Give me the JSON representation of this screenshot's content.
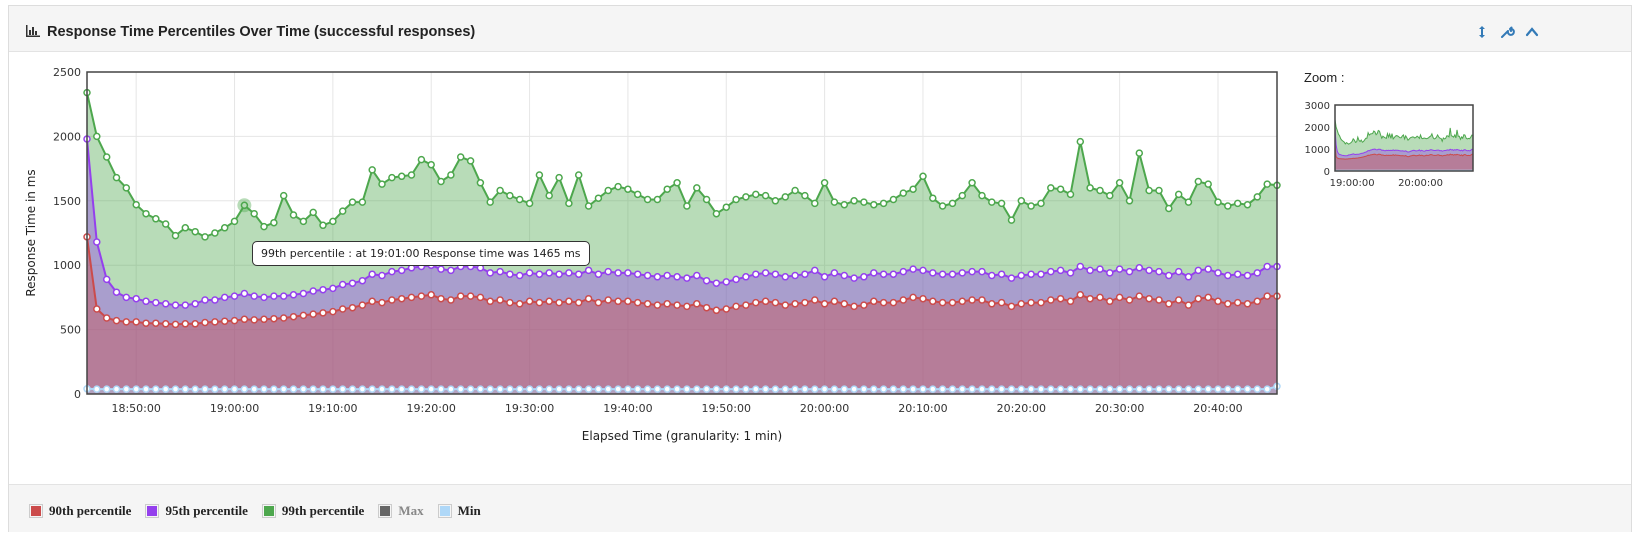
{
  "panel": {
    "title": "Response Time Percentiles Over Time (successful responses)",
    "buttons": [
      {
        "name": "resize-icon"
      },
      {
        "name": "wrench-icon"
      },
      {
        "name": "chevron-up-icon"
      }
    ]
  },
  "zoom": {
    "title": "Zoom :"
  },
  "tooltip": {
    "text": "99th percentile : at 19:01:00 Response time was 1465 ms"
  },
  "colors": {
    "p90": "#cb4b4b",
    "p95": "#9440ed",
    "p99": "#4da74d",
    "max": "#666666",
    "min": "#afd8f8"
  },
  "legend": [
    {
      "label": "90th percentile",
      "color": "#cb4b4b",
      "muted": false
    },
    {
      "label": "95th percentile",
      "color": "#9440ed",
      "muted": false
    },
    {
      "label": "99th percentile",
      "color": "#4da74d",
      "muted": false
    },
    {
      "label": "Max",
      "color": "#666666",
      "muted": true
    },
    {
      "label": "Min",
      "color": "#afd8f8",
      "muted": false
    }
  ],
  "chart_data": {
    "type": "area",
    "title": "",
    "xlabel": "Elapsed Time (granularity: 1 min)",
    "ylabel": "Response Time in ms",
    "x_start": "18:45:00",
    "x_step_min": 1,
    "xlim_min": [
      0,
      121
    ],
    "x_ticks": [
      "18:50:00",
      "19:00:00",
      "19:10:00",
      "19:20:00",
      "19:30:00",
      "19:40:00",
      "19:50:00",
      "20:00:00",
      "20:10:00",
      "20:20:00",
      "20:30:00",
      "20:40:00"
    ],
    "ylim": [
      0,
      2500
    ],
    "y_ticks": [
      0,
      500,
      1000,
      1500,
      2000,
      2500
    ],
    "grid": true,
    "legend_position": "bottom",
    "series": [
      {
        "name": "99th percentile",
        "values": [
          2340,
          2000,
          1840,
          1680,
          1600,
          1470,
          1400,
          1360,
          1320,
          1230,
          1290,
          1260,
          1220,
          1250,
          1290,
          1340,
          1465,
          1400,
          1300,
          1330,
          1540,
          1390,
          1340,
          1410,
          1310,
          1340,
          1420,
          1490,
          1490,
          1740,
          1630,
          1680,
          1690,
          1700,
          1820,
          1780,
          1650,
          1700,
          1840,
          1810,
          1640,
          1490,
          1580,
          1540,
          1510,
          1480,
          1700,
          1540,
          1680,
          1480,
          1700,
          1460,
          1520,
          1580,
          1610,
          1590,
          1550,
          1510,
          1510,
          1590,
          1640,
          1460,
          1600,
          1510,
          1400,
          1450,
          1510,
          1530,
          1550,
          1540,
          1500,
          1530,
          1580,
          1540,
          1480,
          1640,
          1490,
          1470,
          1500,
          1490,
          1470,
          1480,
          1510,
          1560,
          1590,
          1690,
          1520,
          1460,
          1480,
          1540,
          1640,
          1540,
          1490,
          1480,
          1350,
          1500,
          1460,
          1480,
          1600,
          1590,
          1550,
          1960,
          1600,
          1580,
          1540,
          1640,
          1500,
          1870,
          1580,
          1580,
          1440,
          1550,
          1490,
          1650,
          1630,
          1490,
          1460,
          1480,
          1470,
          1530,
          1630,
          1620
        ],
        "style_color": "#4da74d"
      },
      {
        "name": "95th percentile",
        "values": [
          1980,
          1180,
          890,
          790,
          750,
          740,
          720,
          710,
          700,
          690,
          690,
          700,
          730,
          730,
          750,
          760,
          780,
          760,
          750,
          760,
          760,
          770,
          780,
          800,
          810,
          820,
          850,
          860,
          880,
          930,
          920,
          950,
          960,
          980,
          990,
          1000,
          970,
          960,
          990,
          990,
          980,
          940,
          950,
          930,
          920,
          940,
          930,
          940,
          930,
          940,
          930,
          960,
          930,
          950,
          940,
          940,
          930,
          920,
          910,
          920,
          910,
          900,
          920,
          880,
          860,
          870,
          890,
          910,
          930,
          940,
          930,
          910,
          920,
          930,
          960,
          910,
          940,
          920,
          900,
          910,
          940,
          930,
          930,
          950,
          970,
          960,
          940,
          930,
          930,
          940,
          950,
          950,
          920,
          930,
          900,
          920,
          930,
          930,
          950,
          960,
          940,
          990,
          960,
          970,
          940,
          970,
          950,
          980,
          960,
          950,
          920,
          950,
          910,
          960,
          970,
          940,
          920,
          930,
          920,
          940,
          990,
          990
        ],
        "style_color": "#9440ed"
      },
      {
        "name": "90th percentile",
        "values": [
          1220,
          660,
          590,
          570,
          560,
          560,
          550,
          550,
          545,
          540,
          545,
          545,
          555,
          560,
          565,
          570,
          580,
          575,
          580,
          585,
          590,
          600,
          610,
          620,
          630,
          640,
          660,
          670,
          690,
          720,
          710,
          730,
          740,
          750,
          760,
          770,
          740,
          730,
          760,
          760,
          750,
          720,
          730,
          710,
          700,
          720,
          710,
          720,
          710,
          720,
          710,
          740,
          710,
          730,
          720,
          720,
          710,
          700,
          690,
          700,
          690,
          680,
          700,
          670,
          650,
          660,
          680,
          690,
          710,
          720,
          710,
          690,
          700,
          710,
          730,
          700,
          720,
          700,
          680,
          690,
          720,
          710,
          710,
          730,
          750,
          740,
          720,
          710,
          710,
          720,
          730,
          730,
          700,
          710,
          680,
          700,
          710,
          710,
          730,
          740,
          720,
          770,
          740,
          750,
          720,
          750,
          730,
          760,
          740,
          730,
          700,
          730,
          690,
          740,
          750,
          720,
          700,
          710,
          700,
          720,
          760,
          760
        ],
        "style_color": "#cb4b4b"
      },
      {
        "name": "Min",
        "values": [
          40,
          38,
          38,
          38,
          38,
          38,
          38,
          38,
          38,
          38,
          38,
          38,
          38,
          38,
          38,
          38,
          38,
          38,
          38,
          38,
          38,
          38,
          38,
          38,
          38,
          38,
          38,
          38,
          38,
          38,
          38,
          38,
          38,
          38,
          38,
          38,
          38,
          38,
          38,
          38,
          38,
          38,
          38,
          38,
          38,
          38,
          38,
          38,
          38,
          38,
          38,
          38,
          38,
          38,
          38,
          38,
          38,
          38,
          38,
          38,
          38,
          38,
          38,
          38,
          38,
          38,
          38,
          38,
          38,
          38,
          38,
          38,
          38,
          38,
          38,
          38,
          38,
          38,
          38,
          38,
          38,
          38,
          38,
          38,
          38,
          38,
          38,
          38,
          38,
          38,
          38,
          38,
          38,
          38,
          38,
          38,
          38,
          38,
          38,
          38,
          38,
          38,
          38,
          38,
          38,
          38,
          38,
          38,
          38,
          38,
          38,
          38,
          38,
          38,
          38,
          38,
          38,
          38,
          38,
          38,
          38,
          60
        ],
        "style_color": "#afd8f8"
      }
    ]
  },
  "zoom_chart": {
    "ylim": [
      0,
      3000
    ],
    "y_ticks": [
      0,
      1000,
      2000,
      3000
    ],
    "x_ticks": [
      "19:00:00",
      "20:00:00"
    ]
  }
}
